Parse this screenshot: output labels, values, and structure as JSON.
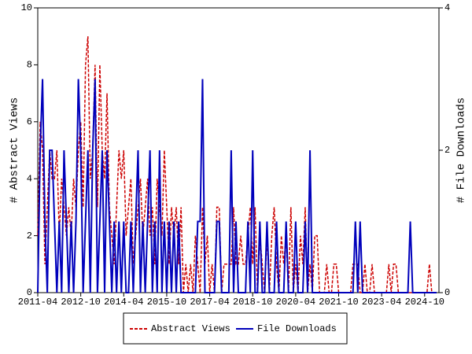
{
  "chart_data": {
    "type": "line",
    "y_label": "# Abstract Views",
    "y2_label": "# File Downloads",
    "x": [
      "2011-04",
      "2011-05",
      "2011-06",
      "2011-07",
      "2011-08",
      "2011-09",
      "2011-10",
      "2011-11",
      "2011-12",
      "2012-01",
      "2012-02",
      "2012-03",
      "2012-04",
      "2012-05",
      "2012-06",
      "2012-07",
      "2012-08",
      "2012-09",
      "2012-10",
      "2012-11",
      "2012-12",
      "2013-01",
      "2013-02",
      "2013-03",
      "2013-04",
      "2013-05",
      "2013-06",
      "2013-07",
      "2013-08",
      "2013-09",
      "2013-10",
      "2013-11",
      "2013-12",
      "2014-01",
      "2014-02",
      "2014-03",
      "2014-04",
      "2014-05",
      "2014-06",
      "2014-07",
      "2014-08",
      "2014-09",
      "2014-10",
      "2014-11",
      "2014-12",
      "2015-01",
      "2015-02",
      "2015-03",
      "2015-04",
      "2015-05",
      "2015-06",
      "2015-07",
      "2015-08",
      "2015-09",
      "2015-10",
      "2015-11",
      "2015-12",
      "2016-01",
      "2016-02",
      "2016-03",
      "2016-04",
      "2016-05",
      "2016-06",
      "2016-07",
      "2016-08",
      "2016-09",
      "2016-10",
      "2016-11",
      "2016-12",
      "2017-01",
      "2017-02",
      "2017-03",
      "2017-04",
      "2017-05",
      "2017-06",
      "2017-07",
      "2017-08",
      "2017-09",
      "2017-10",
      "2017-11",
      "2017-12",
      "2018-01",
      "2018-02",
      "2018-03",
      "2018-04",
      "2018-05",
      "2018-06",
      "2018-07",
      "2018-08",
      "2018-09",
      "2018-10",
      "2018-11",
      "2018-12",
      "2019-01",
      "2019-02",
      "2019-03",
      "2019-04",
      "2019-05",
      "2019-06",
      "2019-07",
      "2019-08",
      "2019-09",
      "2019-10",
      "2019-11",
      "2019-12",
      "2020-01",
      "2020-02",
      "2020-03",
      "2020-04",
      "2020-05",
      "2020-06",
      "2020-07",
      "2020-08",
      "2020-09",
      "2020-10",
      "2020-11",
      "2020-12",
      "2021-01",
      "2021-02",
      "2021-03",
      "2021-04",
      "2021-05",
      "2021-06",
      "2021-07",
      "2021-08",
      "2021-09",
      "2021-10",
      "2021-11",
      "2021-12",
      "2022-01",
      "2022-02",
      "2022-03",
      "2022-04",
      "2022-05",
      "2022-06",
      "2022-07",
      "2022-08",
      "2022-09",
      "2022-10",
      "2022-11",
      "2022-12",
      "2023-01",
      "2023-02",
      "2023-03",
      "2023-04",
      "2023-05",
      "2023-06",
      "2023-07",
      "2023-08",
      "2023-09",
      "2023-10",
      "2023-11",
      "2023-12",
      "2024-01",
      "2024-02",
      "2024-03",
      "2024-04",
      "2024-05",
      "2024-06",
      "2024-07",
      "2024-08",
      "2024-09",
      "2024-10",
      "2024-11",
      "2024-12",
      "2025-01",
      "2025-02",
      "2025-03"
    ],
    "xlim": [
      "2011-04",
      "2025-04"
    ],
    "xticks": [
      "2011-04",
      "2012-10",
      "2014-04",
      "2015-10",
      "2017-04",
      "2018-10",
      "2020-04",
      "2021-10",
      "2023-04",
      "2024-10"
    ],
    "ylim": [
      0,
      10
    ],
    "yticks": [
      0,
      2,
      4,
      6,
      8,
      10
    ],
    "y2lim": [
      0,
      4
    ],
    "y2ticks": [
      0,
      2,
      4
    ],
    "legend": "bottom",
    "series": [
      {
        "name": "Abstract Views",
        "color": "#cc0000",
        "dash": true,
        "values": [
          2,
          6,
          5,
          1,
          3,
          5,
          4,
          4,
          5,
          2,
          4,
          3,
          2,
          3,
          2,
          4,
          3,
          5,
          6,
          3,
          8,
          9,
          4,
          5,
          8,
          3,
          8,
          5,
          4,
          7,
          3,
          2,
          1,
          3,
          5,
          4,
          5,
          2,
          3,
          4,
          1,
          2,
          3,
          4,
          2,
          3,
          4,
          2,
          3,
          1,
          4,
          3,
          2,
          5,
          3,
          1,
          3,
          2,
          3,
          1,
          3,
          0,
          1,
          0,
          1,
          0,
          2,
          1,
          0,
          3,
          1,
          2,
          0,
          1,
          0,
          3,
          3,
          0,
          1,
          1,
          1,
          1,
          3,
          1,
          1,
          2,
          1,
          1,
          2,
          3,
          1,
          3,
          0,
          2,
          1,
          0,
          2,
          0,
          2,
          3,
          1,
          0,
          2,
          1,
          2,
          0,
          3,
          0,
          1,
          0,
          2,
          1,
          3,
          0,
          1,
          0,
          2,
          2,
          0,
          0,
          0,
          1,
          0,
          0,
          1,
          1,
          0,
          0,
          0,
          0,
          0,
          0,
          1,
          1,
          1,
          0,
          0,
          1,
          0,
          0,
          1,
          0,
          0,
          0,
          0,
          0,
          0,
          1,
          0,
          1,
          1,
          0,
          0,
          0,
          0,
          0,
          0,
          0,
          0,
          0,
          0,
          0,
          0,
          0,
          1,
          0,
          0,
          0
        ]
      },
      {
        "name": "File Downloads",
        "color": "#0000bb",
        "axis": "y2",
        "values": [
          0,
          2,
          3,
          1,
          0,
          2,
          2,
          1,
          0,
          1,
          0,
          2,
          1,
          0,
          1,
          0,
          1,
          3,
          2,
          0,
          1,
          2,
          0,
          2,
          3,
          0,
          1,
          2,
          0,
          2,
          1,
          0,
          1,
          0,
          1,
          0,
          1,
          0,
          0,
          1,
          0,
          1,
          2,
          0,
          1,
          0,
          1,
          2,
          0,
          1,
          0,
          2,
          0,
          1,
          0,
          1,
          0,
          1,
          0,
          1,
          0,
          0,
          0,
          0,
          0,
          0,
          0,
          1,
          1,
          3,
          0,
          0,
          0,
          0,
          0,
          1,
          1,
          0,
          0,
          0,
          0,
          2,
          0,
          1,
          0,
          0,
          0,
          0,
          1,
          0,
          2,
          0,
          0,
          1,
          0,
          0,
          1,
          0,
          0,
          0,
          1,
          0,
          0,
          0,
          1,
          0,
          0,
          0,
          1,
          0,
          0,
          0,
          1,
          0,
          2,
          0,
          0,
          0,
          0,
          0,
          0,
          0,
          0,
          0,
          0,
          0,
          0,
          0,
          0,
          0,
          0,
          0,
          0,
          1,
          0,
          1,
          0,
          0,
          0,
          0,
          0,
          0,
          0,
          0,
          0,
          0,
          0,
          0,
          0,
          0,
          0,
          0,
          0,
          0,
          0,
          0,
          1,
          0,
          0,
          0,
          0,
          0,
          0,
          0,
          0,
          0,
          0,
          0
        ]
      }
    ]
  }
}
